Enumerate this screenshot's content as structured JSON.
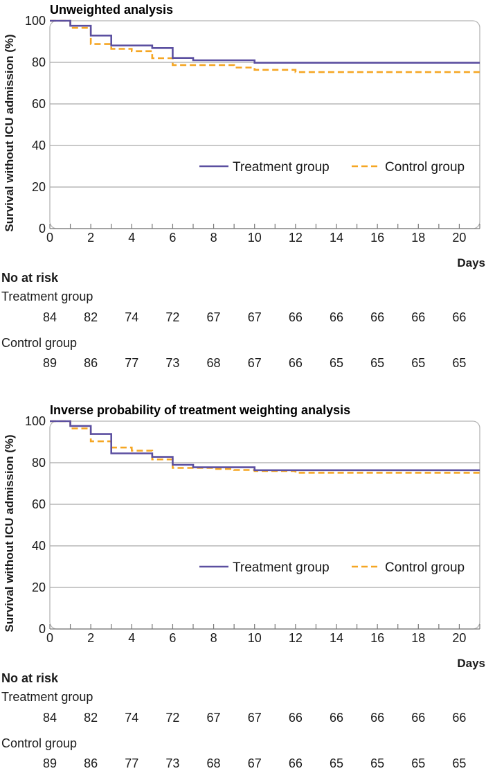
{
  "chart_data": [
    {
      "type": "line",
      "title": "Unweighted analysis",
      "xlabel": "Days",
      "ylabel": "Survival without ICU admission (%)",
      "xlim": [
        0,
        21
      ],
      "ylim": [
        0,
        100
      ],
      "x_ticks": [
        "0",
        "2",
        "4",
        "6",
        "8",
        "10",
        "12",
        "14",
        "16",
        "18",
        "20"
      ],
      "y_ticks": [
        "0",
        "20",
        "40",
        "60",
        "80",
        "100"
      ],
      "grid": true,
      "legend_position": "lower-right, inside plot area",
      "series": [
        {
          "name": "Treatment group",
          "color": "#5b4fa0",
          "style": "solid",
          "steps": [
            [
              0,
              100
            ],
            [
              1,
              97.6
            ],
            [
              2,
              92.9
            ],
            [
              3,
              88.1
            ],
            [
              5,
              86.9
            ],
            [
              6,
              82.1
            ],
            [
              7,
              81
            ],
            [
              10,
              79.8
            ],
            [
              21,
              79.8
            ]
          ]
        },
        {
          "name": "Control group",
          "color": "#f5a623",
          "style": "dashed",
          "steps": [
            [
              0,
              100
            ],
            [
              1,
              96.6
            ],
            [
              2,
              88.8
            ],
            [
              3,
              86.5
            ],
            [
              4,
              85.4
            ],
            [
              5,
              82
            ],
            [
              6,
              78.7
            ],
            [
              9,
              77.5
            ],
            [
              10,
              76.4
            ],
            [
              12,
              75.3
            ],
            [
              21,
              75.3
            ]
          ]
        }
      ],
      "risk_table": {
        "title": "No at risk",
        "days": [
          "0",
          "2",
          "4",
          "6",
          "8",
          "10",
          "12",
          "14",
          "16",
          "18",
          "20"
        ],
        "groups": [
          {
            "name": "Treatment group",
            "values": [
              "84",
              "82",
              "74",
              "72",
              "67",
              "67",
              "66",
              "66",
              "66",
              "66",
              "66"
            ]
          },
          {
            "name": "Control group",
            "values": [
              "89",
              "86",
              "77",
              "73",
              "68",
              "67",
              "66",
              "65",
              "65",
              "65",
              "65"
            ]
          }
        ]
      }
    },
    {
      "type": "line",
      "title": "Inverse probability of treatment weighting analysis",
      "xlabel": "Days",
      "ylabel": "Survival without ICU admission (%)",
      "xlim": [
        0,
        21
      ],
      "ylim": [
        0,
        100
      ],
      "x_ticks": [
        "0",
        "2",
        "4",
        "6",
        "8",
        "10",
        "12",
        "14",
        "16",
        "18",
        "20"
      ],
      "y_ticks": [
        "0",
        "20",
        "40",
        "60",
        "80",
        "100"
      ],
      "grid": true,
      "legend_position": "lower-right, inside plot area",
      "series": [
        {
          "name": "Treatment group",
          "color": "#5b4fa0",
          "style": "solid",
          "steps": [
            [
              0,
              100
            ],
            [
              1,
              97.7
            ],
            [
              2,
              93.8
            ],
            [
              3,
              84.5
            ],
            [
              5,
              82.8
            ],
            [
              6,
              79
            ],
            [
              7,
              77.8
            ],
            [
              10,
              76.4
            ],
            [
              21,
              76.4
            ]
          ]
        },
        {
          "name": "Control group",
          "color": "#f5a623",
          "style": "dashed",
          "steps": [
            [
              0,
              100
            ],
            [
              1,
              96.5
            ],
            [
              2,
              90.3
            ],
            [
              3,
              87.3
            ],
            [
              4,
              85.8
            ],
            [
              5,
              81.6
            ],
            [
              6,
              77.5
            ],
            [
              8,
              77
            ],
            [
              9,
              76.5
            ],
            [
              10,
              76
            ],
            [
              12,
              75.2
            ],
            [
              21,
              75.2
            ]
          ]
        }
      ],
      "risk_table": {
        "title": "No at risk",
        "days": [
          "0",
          "2",
          "4",
          "6",
          "8",
          "10",
          "12",
          "14",
          "16",
          "18",
          "20"
        ],
        "groups": [
          {
            "name": "Treatment group",
            "values": [
              "84",
              "82",
              "74",
              "72",
              "67",
              "67",
              "66",
              "66",
              "66",
              "66",
              "66"
            ]
          },
          {
            "name": "Control group",
            "values": [
              "89",
              "86",
              "77",
              "73",
              "68",
              "67",
              "66",
              "65",
              "65",
              "65",
              "65"
            ]
          }
        ]
      }
    }
  ]
}
